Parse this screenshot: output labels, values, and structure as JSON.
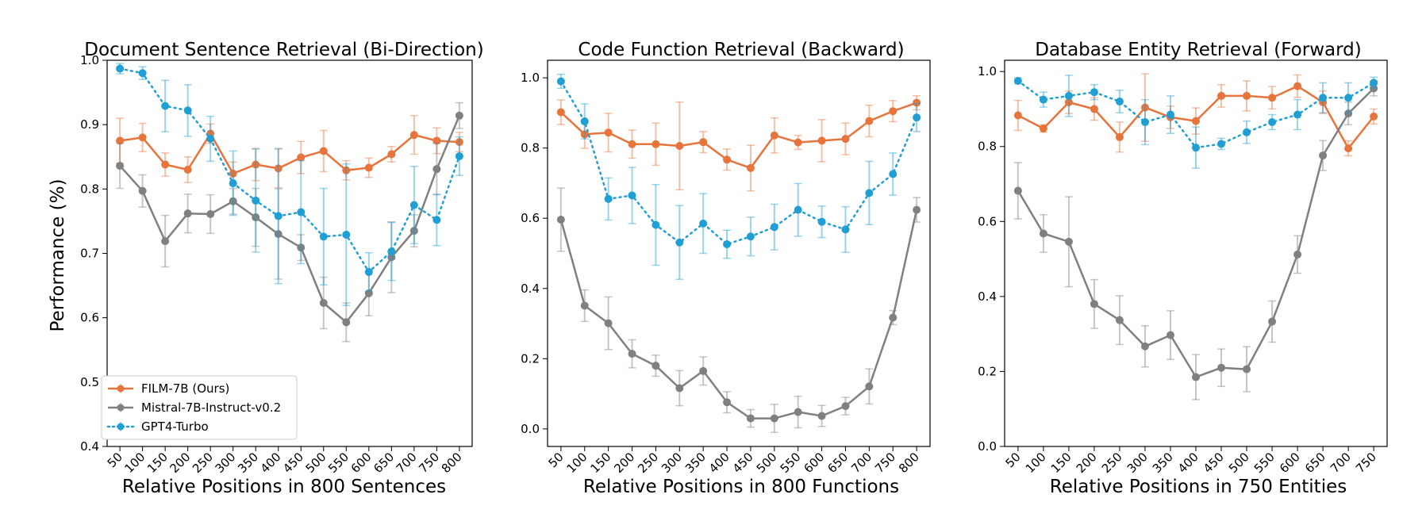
{
  "legend": [
    {
      "label": "FILM-7B (Ours)",
      "color": "#e8743b",
      "style": "solid"
    },
    {
      "label": "Mistral-7B-Instruct-v0.2",
      "color": "#808080",
      "style": "solid"
    },
    {
      "label": "GPT4-Turbo",
      "color": "#1f9fd4",
      "style": "dotted"
    }
  ],
  "chart_data": [
    {
      "type": "line",
      "title": "Document Sentence Retrieval (Bi-Direction)",
      "xlabel": "Relative Positions in 800 Sentences",
      "ylabel": "Performance (%)",
      "ylim": [
        0.4,
        1.0
      ],
      "yticks": [
        "0.4",
        "0.5",
        "0.6",
        "0.7",
        "0.8",
        "0.9",
        "1.0"
      ],
      "x": [
        "50",
        "100",
        "150",
        "200",
        "250",
        "300",
        "350",
        "400",
        "450",
        "500",
        "550",
        "600",
        "650",
        "700",
        "750",
        "800"
      ],
      "series": [
        {
          "name": "FILM-7B (Ours)",
          "color": "#e8743b",
          "values": [
            0.875,
            0.88,
            0.838,
            0.83,
            0.886,
            0.824,
            0.838,
            0.832,
            0.849,
            0.859,
            0.829,
            0.833,
            0.854,
            0.884,
            0.875,
            0.873
          ],
          "err": [
            0.035,
            0.022,
            0.018,
            0.02,
            0.015,
            0.018,
            0.025,
            0.03,
            0.025,
            0.032,
            0.015,
            0.015,
            0.012,
            0.03,
            0.02,
            0.015
          ]
        },
        {
          "name": "Mistral-7B-Instruct-v0.2",
          "color": "#808080",
          "values": [
            0.836,
            0.797,
            0.719,
            0.762,
            0.761,
            0.781,
            0.756,
            0.73,
            0.709,
            0.623,
            0.593,
            0.638,
            0.694,
            0.735,
            0.831,
            0.914
          ],
          "err": [
            0.035,
            0.025,
            0.04,
            0.03,
            0.03,
            0.02,
            0.045,
            0.07,
            0.02,
            0.04,
            0.03,
            0.035,
            0.055,
            0.025,
            0.04,
            0.02
          ]
        },
        {
          "name": "GPT4-Turbo",
          "color": "#1f9fd4",
          "values": [
            0.987,
            0.98,
            0.929,
            0.922,
            0.878,
            0.809,
            0.782,
            0.758,
            0.764,
            0.726,
            0.729,
            0.671,
            0.703,
            0.775,
            0.752,
            0.851
          ],
          "err": [
            0.008,
            0.01,
            0.04,
            0.04,
            0.035,
            0.05,
            0.08,
            0.105,
            0.08,
            0.075,
            0.11,
            0.03,
            0.045,
            0.06,
            0.04,
            0.03
          ]
        }
      ]
    },
    {
      "type": "line",
      "title": "Code Function Retrieval (Backward)",
      "xlabel": "Relative Positions in 800 Functions",
      "ylabel": "",
      "ylim": [
        -0.05,
        1.05
      ],
      "yticks": [
        "0.0",
        "0.2",
        "0.4",
        "0.6",
        "0.8",
        "1.0"
      ],
      "x": [
        "50",
        "100",
        "150",
        "200",
        "250",
        "300",
        "350",
        "400",
        "450",
        "500",
        "550",
        "600",
        "650",
        "700",
        "750",
        "800"
      ],
      "series": [
        {
          "name": "FILM-7B (Ours)",
          "color": "#e8743b",
          "values": [
            0.902,
            0.839,
            0.844,
            0.811,
            0.811,
            0.806,
            0.817,
            0.767,
            0.743,
            0.836,
            0.816,
            0.821,
            0.826,
            0.877,
            0.905,
            0.929
          ],
          "err": [
            0.035,
            0.04,
            0.055,
            0.04,
            0.06,
            0.125,
            0.03,
            0.03,
            0.065,
            0.05,
            0.02,
            0.06,
            0.045,
            0.045,
            0.03,
            0.02
          ]
        },
        {
          "name": "Mistral-7B-Instruct-v0.2",
          "color": "#808080",
          "values": [
            0.596,
            0.351,
            0.301,
            0.214,
            0.18,
            0.116,
            0.165,
            0.076,
            0.03,
            0.03,
            0.048,
            0.037,
            0.065,
            0.121,
            0.317,
            0.624
          ],
          "err": [
            0.09,
            0.045,
            0.075,
            0.04,
            0.03,
            0.05,
            0.04,
            0.03,
            0.025,
            0.04,
            0.045,
            0.03,
            0.025,
            0.05,
            0.02,
            0.035
          ]
        },
        {
          "name": "GPT4-Turbo",
          "color": "#1f9fd4",
          "values": [
            0.99,
            0.876,
            0.655,
            0.665,
            0.581,
            0.531,
            0.585,
            0.526,
            0.548,
            0.575,
            0.624,
            0.59,
            0.568,
            0.672,
            0.726,
            0.887
          ],
          "err": [
            0.02,
            0.05,
            0.06,
            0.08,
            0.115,
            0.105,
            0.085,
            0.04,
            0.055,
            0.065,
            0.075,
            0.045,
            0.065,
            0.09,
            0.06,
            0.04
          ]
        }
      ]
    },
    {
      "type": "line",
      "title": "Database Entity Retrieval (Forward)",
      "xlabel": "Relative Positions in 750 Entities",
      "ylabel": "",
      "ylim": [
        0.0,
        1.03
      ],
      "yticks": [
        "0.0",
        "0.2",
        "0.4",
        "0.6",
        "0.8",
        "1.0"
      ],
      "x": [
        "50",
        "100",
        "150",
        "200",
        "250",
        "300",
        "350",
        "400",
        "450",
        "500",
        "550",
        "600",
        "650",
        "700",
        "750"
      ],
      "series": [
        {
          "name": "FILM-7B (Ours)",
          "color": "#e8743b",
          "values": [
            0.883,
            0.848,
            0.918,
            0.9,
            0.825,
            0.904,
            0.878,
            0.868,
            0.935,
            0.935,
            0.93,
            0.961,
            0.918,
            0.795,
            0.88
          ],
          "err": [
            0.04,
            0.01,
            0.03,
            0.03,
            0.04,
            0.09,
            0.03,
            0.035,
            0.03,
            0.04,
            0.03,
            0.03,
            0.03,
            0.02,
            0.02
          ]
        },
        {
          "name": "Mistral-7B-Instruct-v0.2",
          "color": "#808080",
          "values": [
            0.682,
            0.568,
            0.546,
            0.38,
            0.337,
            0.267,
            0.297,
            0.185,
            0.21,
            0.206,
            0.333,
            0.512,
            0.776,
            0.888,
            0.955
          ],
          "err": [
            0.075,
            0.05,
            0.12,
            0.065,
            0.065,
            0.055,
            0.065,
            0.06,
            0.05,
            0.06,
            0.055,
            0.05,
            0.04,
            0.03,
            0.02
          ]
        },
        {
          "name": "GPT4-Turbo",
          "color": "#1f9fd4",
          "values": [
            0.975,
            0.925,
            0.935,
            0.945,
            0.92,
            0.865,
            0.885,
            0.797,
            0.807,
            0.838,
            0.865,
            0.885,
            0.93,
            0.93,
            0.97
          ],
          "err": [
            0.008,
            0.02,
            0.055,
            0.02,
            0.03,
            0.06,
            0.05,
            0.055,
            0.015,
            0.03,
            0.02,
            0.04,
            0.04,
            0.04,
            0.015
          ]
        }
      ]
    }
  ]
}
